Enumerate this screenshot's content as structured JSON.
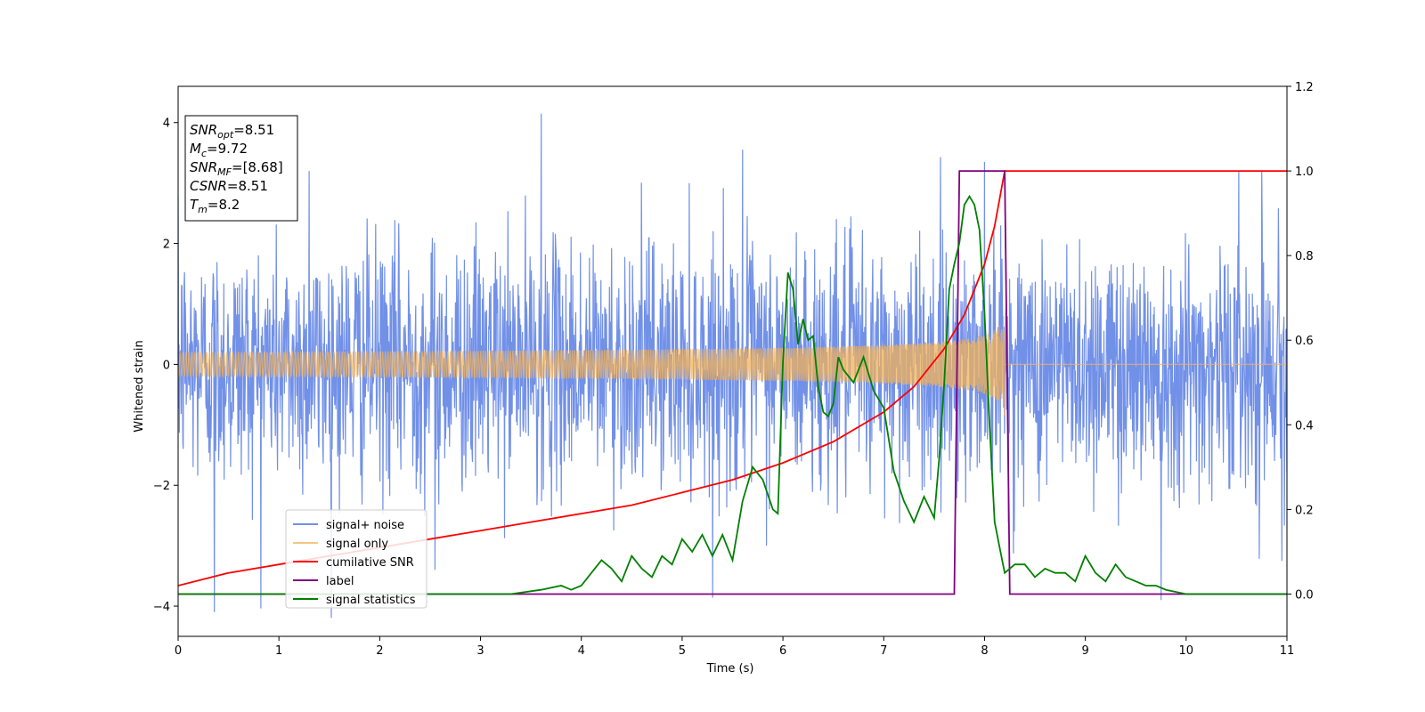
{
  "chart_data": {
    "type": "line",
    "title": "",
    "xlabel": "Time (s)",
    "ylabel": "Whitened strain",
    "y2label": "",
    "xlim": [
      0,
      11
    ],
    "ylim": [
      -4.5,
      4.6
    ],
    "y2lim": [
      -0.1,
      1.2
    ],
    "xticks": [
      "0",
      "1",
      "2",
      "3",
      "4",
      "5",
      "6",
      "7",
      "8",
      "9",
      "10",
      "11"
    ],
    "yticks": [
      "4",
      "2",
      "0",
      "−2",
      "−4"
    ],
    "y2ticks": [
      "1.2",
      "1.0",
      "0.8",
      "0.6",
      "0.4",
      "0.2",
      "0.0"
    ],
    "grid": false,
    "legend_position": "lower-left",
    "info_box": [
      {
        "var": "SNR",
        "sub": "opt",
        "value": "=8.51"
      },
      {
        "var": "M",
        "sub": "c",
        "value": "=9.72"
      },
      {
        "var": "SNR",
        "sub": "MF",
        "value": "=[8.68]"
      },
      {
        "var": "CSNR",
        "sub": "",
        "value": "=8.51"
      },
      {
        "var": "T",
        "sub": "m",
        "value": "=8.2"
      }
    ],
    "series": [
      {
        "name": "signal+ noise",
        "axis": "left",
        "color": "#7190e8",
        "kind": "noise",
        "noise_std": 1.0,
        "sample_spikes": [
          [
            0.36,
            -4.1
          ],
          [
            3.6,
            4.15
          ],
          [
            5.5,
            -3.85
          ],
          [
            5.6,
            3.55
          ],
          [
            8.0,
            3.35
          ],
          [
            9.75,
            -3.9
          ],
          [
            1.3,
            3.2
          ],
          [
            10.75,
            3.2
          ],
          [
            2.55,
            -3.4
          ],
          [
            10.95,
            -3.25
          ]
        ]
      },
      {
        "name": "signal only",
        "axis": "left",
        "color": "#f2b15a",
        "kind": "chirp",
        "t_merge": 8.2,
        "amplitude_at_merge": 0.9,
        "amplitude_at_start": 0.03
      },
      {
        "name": "cumilative SNR",
        "axis": "right",
        "color": "#ff0000",
        "x": [
          0.0,
          0.5,
          1.0,
          1.5,
          2.0,
          2.5,
          3.0,
          3.5,
          4.0,
          4.5,
          5.0,
          5.5,
          6.0,
          6.5,
          7.0,
          7.3,
          7.6,
          7.8,
          8.0,
          8.1,
          8.2,
          11.0
        ],
        "values": [
          0.02,
          0.05,
          0.07,
          0.09,
          0.11,
          0.13,
          0.15,
          0.17,
          0.19,
          0.21,
          0.24,
          0.27,
          0.31,
          0.36,
          0.43,
          0.49,
          0.58,
          0.66,
          0.78,
          0.87,
          1.0,
          1.0
        ]
      },
      {
        "name": "label",
        "axis": "right",
        "color": "#800080",
        "x": [
          0.0,
          7.7,
          7.75,
          8.2,
          8.25,
          11.0
        ],
        "values": [
          0.0,
          0.0,
          1.0,
          1.0,
          0.0,
          0.0
        ]
      },
      {
        "name": "signal statistics",
        "axis": "right",
        "color": "#008000",
        "x": [
          0.0,
          1.0,
          2.0,
          2.5,
          3.0,
          3.3,
          3.6,
          3.8,
          3.9,
          4.0,
          4.1,
          4.2,
          4.3,
          4.4,
          4.5,
          4.6,
          4.7,
          4.8,
          4.9,
          5.0,
          5.1,
          5.2,
          5.3,
          5.4,
          5.5,
          5.6,
          5.7,
          5.8,
          5.9,
          5.95,
          6.0,
          6.05,
          6.1,
          6.15,
          6.2,
          6.25,
          6.3,
          6.35,
          6.4,
          6.45,
          6.5,
          6.55,
          6.6,
          6.7,
          6.8,
          6.9,
          7.0,
          7.1,
          7.2,
          7.3,
          7.4,
          7.5,
          7.55,
          7.6,
          7.65,
          7.7,
          7.75,
          7.8,
          7.85,
          7.9,
          7.95,
          8.0,
          8.05,
          8.1,
          8.15,
          8.2,
          8.25,
          8.3,
          8.4,
          8.5,
          8.6,
          8.7,
          8.8,
          8.9,
          9.0,
          9.1,
          9.2,
          9.3,
          9.4,
          9.5,
          9.6,
          9.7,
          9.8,
          10.0,
          10.5,
          11.0
        ],
        "values": [
          0.0,
          0.0,
          0.0,
          0.0,
          0.0,
          0.0,
          0.01,
          0.02,
          0.01,
          0.02,
          0.05,
          0.08,
          0.06,
          0.03,
          0.09,
          0.06,
          0.04,
          0.09,
          0.07,
          0.13,
          0.1,
          0.14,
          0.09,
          0.14,
          0.08,
          0.22,
          0.3,
          0.27,
          0.2,
          0.19,
          0.55,
          0.76,
          0.72,
          0.59,
          0.65,
          0.6,
          0.61,
          0.49,
          0.43,
          0.42,
          0.45,
          0.56,
          0.53,
          0.5,
          0.56,
          0.48,
          0.44,
          0.29,
          0.22,
          0.17,
          0.23,
          0.18,
          0.32,
          0.5,
          0.72,
          0.78,
          0.83,
          0.92,
          0.94,
          0.92,
          0.86,
          0.66,
          0.4,
          0.17,
          0.11,
          0.05,
          0.06,
          0.07,
          0.07,
          0.04,
          0.06,
          0.05,
          0.05,
          0.03,
          0.09,
          0.05,
          0.03,
          0.07,
          0.04,
          0.03,
          0.02,
          0.02,
          0.01,
          0.0,
          0.0,
          0.0
        ]
      }
    ]
  }
}
